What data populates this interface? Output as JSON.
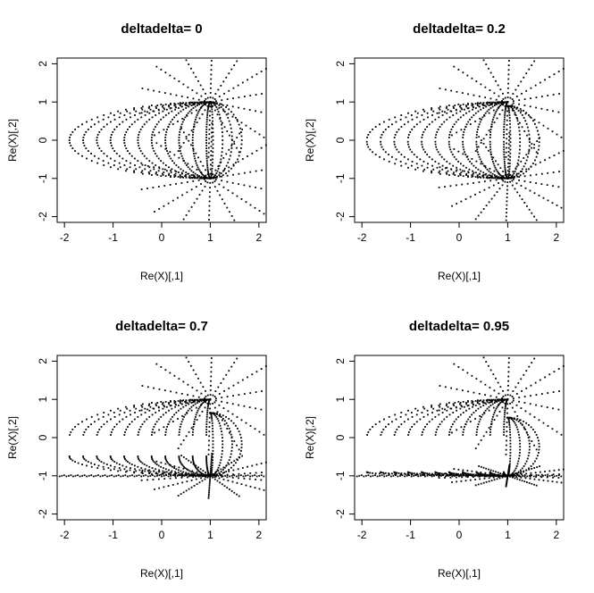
{
  "chart_data": [
    {
      "type": "scatter",
      "title": "deltadelta= 0",
      "delta": 0,
      "xlabel": "Re(X)[,1]",
      "ylabel": "Re(X)[,2]",
      "xlim": [
        -2.15,
        2.15
      ],
      "ylim": [
        -2.15,
        2.15
      ],
      "xticks": [
        -2,
        -1,
        0,
        1,
        2
      ],
      "yticks": [
        -2,
        -1,
        0,
        1,
        2
      ],
      "xtick_labels": [
        "-2",
        "-1",
        "0",
        "1",
        "2"
      ],
      "ytick_labels": [
        "-2",
        "-1",
        "0",
        "1",
        "2"
      ],
      "grid": false,
      "legend": "none",
      "point_color": "#000000",
      "series": [
        {
          "points": []
        }
      ]
    },
    {
      "type": "scatter",
      "title": "deltadelta= 0.2",
      "delta": 0.2,
      "xlabel": "Re(X)[,1]",
      "ylabel": "Re(X)[,2]",
      "xlim": [
        -2.15,
        2.15
      ],
      "ylim": [
        -2.15,
        2.15
      ],
      "xticks": [
        -2,
        -1,
        0,
        1,
        2
      ],
      "yticks": [
        -2,
        -1,
        0,
        1,
        2
      ],
      "xtick_labels": [
        "-2",
        "-1",
        "0",
        "1",
        "2"
      ],
      "ytick_labels": [
        "-2",
        "-1",
        "0",
        "1",
        "2"
      ],
      "grid": false,
      "legend": "none",
      "point_color": "#000000",
      "series": [
        {
          "points": []
        }
      ]
    },
    {
      "type": "scatter",
      "title": "deltadelta= 0.7",
      "delta": 0.7,
      "xlabel": "Re(X)[,1]",
      "ylabel": "Re(X)[,2]",
      "xlim": [
        -2.15,
        2.15
      ],
      "ylim": [
        -2.15,
        2.15
      ],
      "xticks": [
        -2,
        -1,
        0,
        1,
        2
      ],
      "yticks": [
        -2,
        -1,
        0,
        1,
        2
      ],
      "xtick_labels": [
        "-2",
        "-1",
        "0",
        "1",
        "2"
      ],
      "ytick_labels": [
        "-2",
        "-1",
        "0",
        "1",
        "2"
      ],
      "grid": false,
      "legend": "none",
      "point_color": "#000000",
      "series": [
        {
          "points": []
        }
      ]
    },
    {
      "type": "scatter",
      "title": "deltadelta= 0.95",
      "delta": 0.95,
      "xlabel": "Re(X)[,1]",
      "ylabel": "Re(X)[,2]",
      "xlim": [
        -2.15,
        2.15
      ],
      "ylim": [
        -2.15,
        2.15
      ],
      "xticks": [
        -2,
        -1,
        0,
        1,
        2
      ],
      "yticks": [
        -2,
        -1,
        0,
        1,
        2
      ],
      "xtick_labels": [
        "-2",
        "-1",
        "0",
        "1",
        "2"
      ],
      "ytick_labels": [
        "-2",
        "-1",
        "0",
        "1",
        "2"
      ],
      "grid": false,
      "legend": "none",
      "point_color": "#000000",
      "series": [
        {
          "points": []
        }
      ]
    }
  ]
}
